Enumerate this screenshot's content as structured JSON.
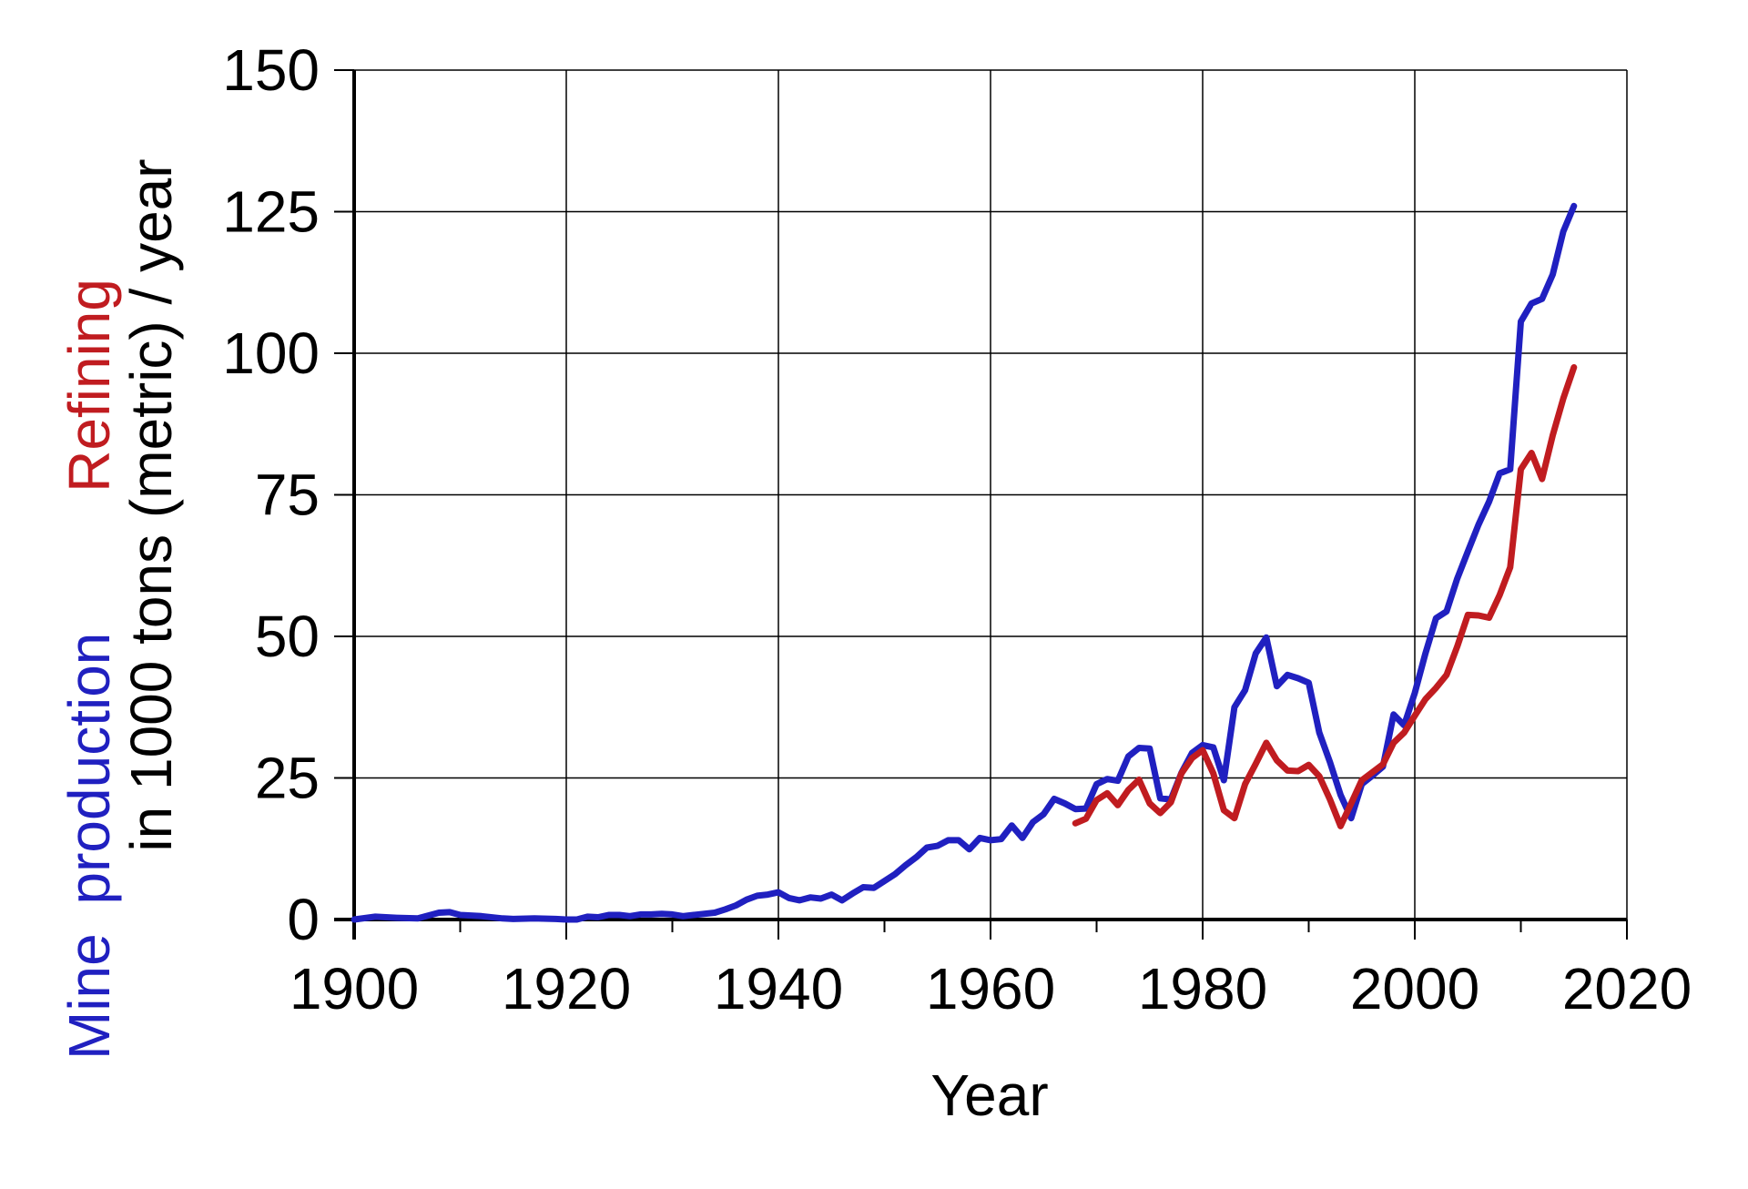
{
  "colors": {
    "mine": "#2020c0",
    "refining": "#c01c20"
  },
  "chart_data": {
    "type": "line",
    "xlabel": "Year",
    "ylabel": {
      "line1_mine": "Mine",
      "line1_production": "production",
      "line1_refining": "Refining",
      "line2": "in 1000 tons (metric) / year"
    },
    "xlim": [
      1900,
      2020
    ],
    "ylim": [
      0,
      150
    ],
    "xticks": [
      1900,
      1920,
      1940,
      1960,
      1980,
      2000,
      2020
    ],
    "yticks": [
      0,
      25,
      50,
      75,
      100,
      125,
      150
    ],
    "grid": true,
    "series": [
      {
        "key": "mine",
        "x": [
          1900,
          1902,
          1904,
          1906,
          1908,
          1909,
          1910,
          1912,
          1914,
          1915,
          1917,
          1919,
          1920,
          1921,
          1922,
          1923,
          1924,
          1925,
          1926,
          1927,
          1928,
          1929,
          1930,
          1931,
          1932,
          1934,
          1935,
          1936,
          1937,
          1938,
          1939,
          1940,
          1941,
          1942,
          1943,
          1944,
          1945,
          1946,
          1947,
          1948,
          1949,
          1950,
          1951,
          1952,
          1953,
          1954,
          1955,
          1956,
          1957,
          1958,
          1959,
          1960,
          1961,
          1962,
          1963,
          1964,
          1965,
          1966,
          1967,
          1968,
          1969,
          1970,
          1971,
          1972,
          1973,
          1974,
          1975,
          1976,
          1977,
          1978,
          1979,
          1980,
          1981,
          1982,
          1983,
          1984,
          1985,
          1986,
          1987,
          1988,
          1989,
          1990,
          1991,
          1992,
          1993,
          1994,
          1995,
          1996,
          1997,
          1998,
          1999,
          2000,
          2001,
          2002,
          2003,
          2004,
          2005,
          2006,
          2007,
          2008,
          2009,
          2010,
          2011,
          2012,
          2013,
          2014,
          2015
        ],
        "y": [
          0,
          0.5,
          0.3,
          0.2,
          1.2,
          1.3,
          0.8,
          0.6,
          0.2,
          0.1,
          0.2,
          0.1,
          0,
          0,
          0.5,
          0.4,
          0.8,
          0.8,
          0.6,
          0.9,
          0.9,
          1,
          0.9,
          0.6,
          0.8,
          1.2,
          1.8,
          2.5,
          3.5,
          4.2,
          4.4,
          4.8,
          3.8,
          3.4,
          3.9,
          3.7,
          4.4,
          3.4,
          4.6,
          5.7,
          5.6,
          6.8,
          8,
          9.6,
          11,
          12.7,
          13,
          14,
          14,
          12.4,
          14.4,
          14,
          14.2,
          16.6,
          14.4,
          17.2,
          18.6,
          21.3,
          20.5,
          19.5,
          19.6,
          23.9,
          24.8,
          24.5,
          28.8,
          30.3,
          30.2,
          21.4,
          21.2,
          25.9,
          29.4,
          30.8,
          30.4,
          24.6,
          37.5,
          40.5,
          47,
          49.8,
          41.2,
          43.2,
          42.6,
          41.8,
          33,
          27.8,
          22,
          17.9,
          23.9,
          25.4,
          27,
          36.2,
          34.3,
          40,
          47,
          53.2,
          54.4,
          60.2,
          65,
          69.7,
          73.8,
          78.8,
          79.5,
          105.6,
          108.8,
          109.6,
          113.9,
          121.5,
          126
        ]
      },
      {
        "key": "refining",
        "x": [
          1968,
          1969,
          1970,
          1971,
          1972,
          1973,
          1974,
          1975,
          1976,
          1977,
          1978,
          1979,
          1980,
          1981,
          1982,
          1983,
          1984,
          1985,
          1986,
          1987,
          1988,
          1989,
          1990,
          1991,
          1992,
          1993,
          1994,
          1995,
          1996,
          1997,
          1998,
          1999,
          2000,
          2001,
          2002,
          2003,
          2004,
          2005,
          2006,
          2007,
          2008,
          2009,
          2010,
          2011,
          2012,
          2013,
          2014,
          2015
        ],
        "y": [
          17,
          17.8,
          21.1,
          22.3,
          20.2,
          22.9,
          24.7,
          20.5,
          18.8,
          20.7,
          25.8,
          28.5,
          29.9,
          25.8,
          19.3,
          17.9,
          23.9,
          27.5,
          31.2,
          28.1,
          26.3,
          26.2,
          27.3,
          25.3,
          21.2,
          16.5,
          20.5,
          24.6,
          26,
          27.4,
          31.2,
          33,
          36,
          38.9,
          40.9,
          43.2,
          48.2,
          53.8,
          53.7,
          53.3,
          57.3,
          62.2,
          79.5,
          82.4,
          77.8,
          85.5,
          92,
          97.5
        ]
      }
    ]
  }
}
